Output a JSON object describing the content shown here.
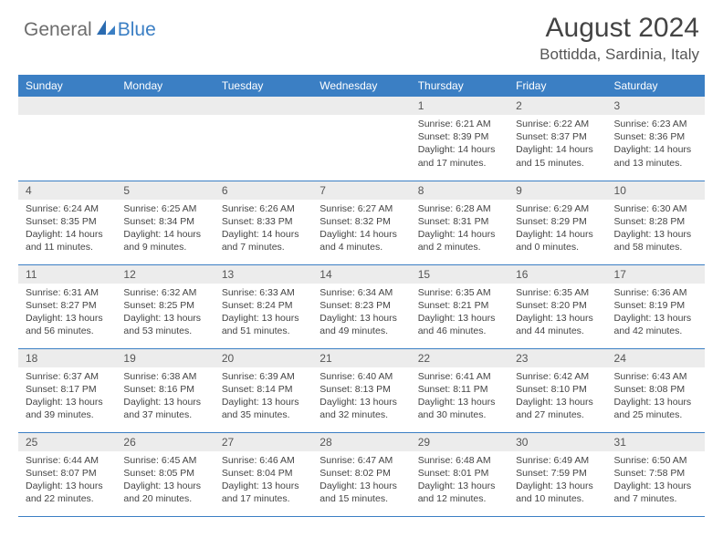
{
  "logo": {
    "text1": "General",
    "text2": "Blue"
  },
  "title": "August 2024",
  "location": "Bottidda, Sardinia, Italy",
  "colors": {
    "header_bg": "#3b7fc4",
    "header_text": "#ffffff",
    "daynum_bg": "#ececec",
    "border": "#3b7fc4",
    "body_text": "#444444",
    "logo_gray": "#6d6d6d",
    "logo_blue": "#3b7fc4"
  },
  "layout": {
    "columns": 7,
    "rows": 5
  },
  "day_headers": [
    "Sunday",
    "Monday",
    "Tuesday",
    "Wednesday",
    "Thursday",
    "Friday",
    "Saturday"
  ],
  "weeks": [
    [
      {
        "n": "",
        "sr": "",
        "ss": "",
        "dl": ""
      },
      {
        "n": "",
        "sr": "",
        "ss": "",
        "dl": ""
      },
      {
        "n": "",
        "sr": "",
        "ss": "",
        "dl": ""
      },
      {
        "n": "",
        "sr": "",
        "ss": "",
        "dl": ""
      },
      {
        "n": "1",
        "sr": "Sunrise: 6:21 AM",
        "ss": "Sunset: 8:39 PM",
        "dl": "Daylight: 14 hours and 17 minutes."
      },
      {
        "n": "2",
        "sr": "Sunrise: 6:22 AM",
        "ss": "Sunset: 8:37 PM",
        "dl": "Daylight: 14 hours and 15 minutes."
      },
      {
        "n": "3",
        "sr": "Sunrise: 6:23 AM",
        "ss": "Sunset: 8:36 PM",
        "dl": "Daylight: 14 hours and 13 minutes."
      }
    ],
    [
      {
        "n": "4",
        "sr": "Sunrise: 6:24 AM",
        "ss": "Sunset: 8:35 PM",
        "dl": "Daylight: 14 hours and 11 minutes."
      },
      {
        "n": "5",
        "sr": "Sunrise: 6:25 AM",
        "ss": "Sunset: 8:34 PM",
        "dl": "Daylight: 14 hours and 9 minutes."
      },
      {
        "n": "6",
        "sr": "Sunrise: 6:26 AM",
        "ss": "Sunset: 8:33 PM",
        "dl": "Daylight: 14 hours and 7 minutes."
      },
      {
        "n": "7",
        "sr": "Sunrise: 6:27 AM",
        "ss": "Sunset: 8:32 PM",
        "dl": "Daylight: 14 hours and 4 minutes."
      },
      {
        "n": "8",
        "sr": "Sunrise: 6:28 AM",
        "ss": "Sunset: 8:31 PM",
        "dl": "Daylight: 14 hours and 2 minutes."
      },
      {
        "n": "9",
        "sr": "Sunrise: 6:29 AM",
        "ss": "Sunset: 8:29 PM",
        "dl": "Daylight: 14 hours and 0 minutes."
      },
      {
        "n": "10",
        "sr": "Sunrise: 6:30 AM",
        "ss": "Sunset: 8:28 PM",
        "dl": "Daylight: 13 hours and 58 minutes."
      }
    ],
    [
      {
        "n": "11",
        "sr": "Sunrise: 6:31 AM",
        "ss": "Sunset: 8:27 PM",
        "dl": "Daylight: 13 hours and 56 minutes."
      },
      {
        "n": "12",
        "sr": "Sunrise: 6:32 AM",
        "ss": "Sunset: 8:25 PM",
        "dl": "Daylight: 13 hours and 53 minutes."
      },
      {
        "n": "13",
        "sr": "Sunrise: 6:33 AM",
        "ss": "Sunset: 8:24 PM",
        "dl": "Daylight: 13 hours and 51 minutes."
      },
      {
        "n": "14",
        "sr": "Sunrise: 6:34 AM",
        "ss": "Sunset: 8:23 PM",
        "dl": "Daylight: 13 hours and 49 minutes."
      },
      {
        "n": "15",
        "sr": "Sunrise: 6:35 AM",
        "ss": "Sunset: 8:21 PM",
        "dl": "Daylight: 13 hours and 46 minutes."
      },
      {
        "n": "16",
        "sr": "Sunrise: 6:35 AM",
        "ss": "Sunset: 8:20 PM",
        "dl": "Daylight: 13 hours and 44 minutes."
      },
      {
        "n": "17",
        "sr": "Sunrise: 6:36 AM",
        "ss": "Sunset: 8:19 PM",
        "dl": "Daylight: 13 hours and 42 minutes."
      }
    ],
    [
      {
        "n": "18",
        "sr": "Sunrise: 6:37 AM",
        "ss": "Sunset: 8:17 PM",
        "dl": "Daylight: 13 hours and 39 minutes."
      },
      {
        "n": "19",
        "sr": "Sunrise: 6:38 AM",
        "ss": "Sunset: 8:16 PM",
        "dl": "Daylight: 13 hours and 37 minutes."
      },
      {
        "n": "20",
        "sr": "Sunrise: 6:39 AM",
        "ss": "Sunset: 8:14 PM",
        "dl": "Daylight: 13 hours and 35 minutes."
      },
      {
        "n": "21",
        "sr": "Sunrise: 6:40 AM",
        "ss": "Sunset: 8:13 PM",
        "dl": "Daylight: 13 hours and 32 minutes."
      },
      {
        "n": "22",
        "sr": "Sunrise: 6:41 AM",
        "ss": "Sunset: 8:11 PM",
        "dl": "Daylight: 13 hours and 30 minutes."
      },
      {
        "n": "23",
        "sr": "Sunrise: 6:42 AM",
        "ss": "Sunset: 8:10 PM",
        "dl": "Daylight: 13 hours and 27 minutes."
      },
      {
        "n": "24",
        "sr": "Sunrise: 6:43 AM",
        "ss": "Sunset: 8:08 PM",
        "dl": "Daylight: 13 hours and 25 minutes."
      }
    ],
    [
      {
        "n": "25",
        "sr": "Sunrise: 6:44 AM",
        "ss": "Sunset: 8:07 PM",
        "dl": "Daylight: 13 hours and 22 minutes."
      },
      {
        "n": "26",
        "sr": "Sunrise: 6:45 AM",
        "ss": "Sunset: 8:05 PM",
        "dl": "Daylight: 13 hours and 20 minutes."
      },
      {
        "n": "27",
        "sr": "Sunrise: 6:46 AM",
        "ss": "Sunset: 8:04 PM",
        "dl": "Daylight: 13 hours and 17 minutes."
      },
      {
        "n": "28",
        "sr": "Sunrise: 6:47 AM",
        "ss": "Sunset: 8:02 PM",
        "dl": "Daylight: 13 hours and 15 minutes."
      },
      {
        "n": "29",
        "sr": "Sunrise: 6:48 AM",
        "ss": "Sunset: 8:01 PM",
        "dl": "Daylight: 13 hours and 12 minutes."
      },
      {
        "n": "30",
        "sr": "Sunrise: 6:49 AM",
        "ss": "Sunset: 7:59 PM",
        "dl": "Daylight: 13 hours and 10 minutes."
      },
      {
        "n": "31",
        "sr": "Sunrise: 6:50 AM",
        "ss": "Sunset: 7:58 PM",
        "dl": "Daylight: 13 hours and 7 minutes."
      }
    ]
  ]
}
